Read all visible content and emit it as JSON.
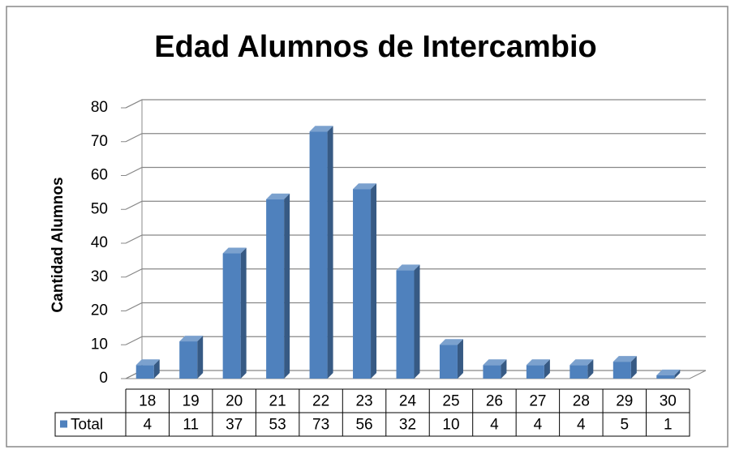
{
  "chart_data": {
    "type": "bar",
    "title": "Edad Alumnos de Intercambio",
    "y_label": "Cantidad Alumnos",
    "categories": [
      "18",
      "19",
      "20",
      "21",
      "22",
      "23",
      "24",
      "25",
      "26",
      "27",
      "28",
      "29",
      "30"
    ],
    "series": [
      {
        "name": "Total",
        "color": "#4f81bd",
        "values": [
          4,
          11,
          37,
          53,
          73,
          56,
          32,
          10,
          4,
          4,
          4,
          5,
          1
        ]
      }
    ],
    "ylim": [
      0,
      80
    ],
    "yticks": [
      0,
      10,
      20,
      30,
      40,
      50,
      60,
      70,
      80
    ],
    "grid": true,
    "data_table": true
  }
}
